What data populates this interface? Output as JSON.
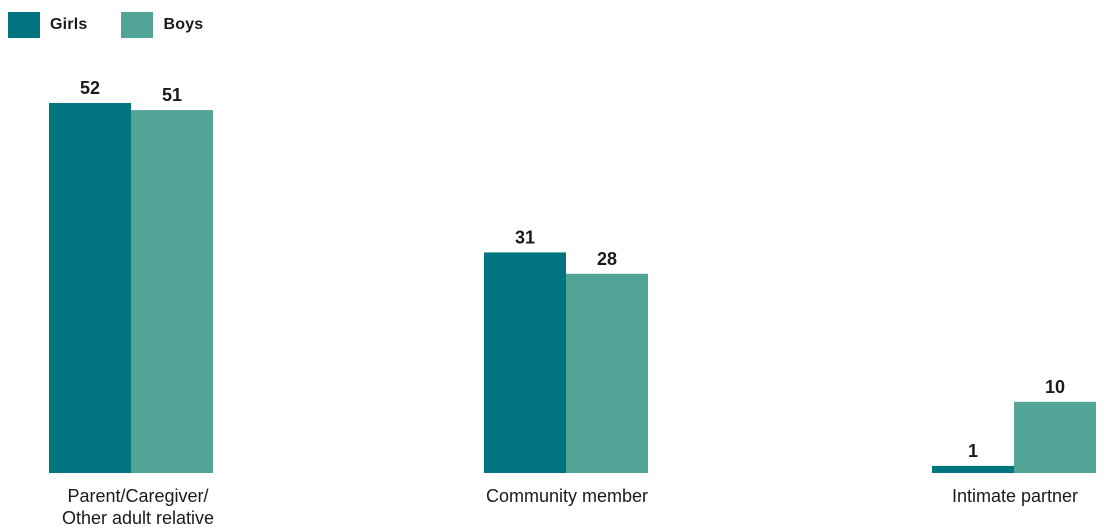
{
  "chart_data": {
    "type": "bar",
    "categories": [
      [
        "Parent/Caregiver/",
        "Other adult relative"
      ],
      [
        "Community member"
      ],
      [
        "Intimate partner"
      ]
    ],
    "series": [
      {
        "name": "Girls",
        "values": [
          52,
          31,
          1
        ],
        "color": "#00757f"
      },
      {
        "name": "Boys",
        "values": [
          51,
          28,
          10
        ],
        "color": "#52a596"
      }
    ],
    "ylim": [
      0,
      52
    ],
    "title": "",
    "xlabel": "",
    "ylabel": "",
    "grid": false,
    "legend_position": "top-left"
  }
}
